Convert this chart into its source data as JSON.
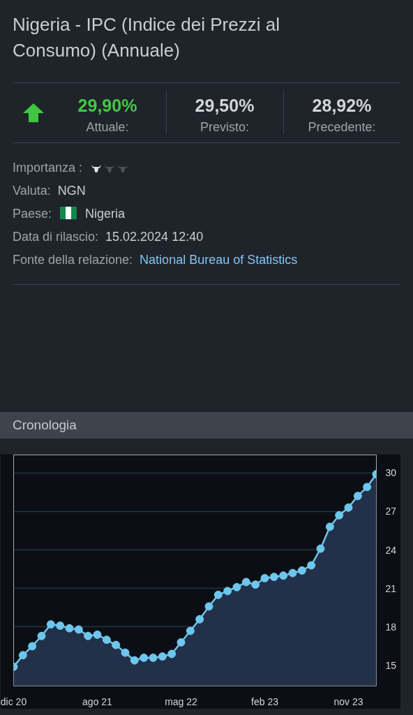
{
  "chart_data": [
    {
      "type": "other",
      "title": "Nigeria - IPC (Indice dei Prezzi al Consumo) (Annuale)",
      "annotations": [
        "29,90%",
        "Attuale:",
        "29,50%",
        "Previsto:",
        "28,92%",
        "Precedente:",
        "Importanza :",
        "Valuta:",
        "NGN",
        "Paese:",
        "Nigeria",
        "Data di rilascio:",
        "15.02.2024 12:40",
        "Fonte della relazione:",
        "National Bureau of Statistics"
      ]
    },
    {
      "type": "area",
      "title": "Cronologia",
      "categories": [
        "dic 20",
        null,
        null,
        null,
        null,
        null,
        null,
        null,
        null,
        "ago 21",
        null,
        null,
        null,
        null,
        null,
        null,
        null,
        null,
        "mag 22",
        null,
        null,
        null,
        null,
        null,
        null,
        null,
        null,
        "feb 23",
        null,
        null,
        null,
        null,
        null,
        null,
        null,
        null,
        "nov 23",
        null,
        null,
        null
      ],
      "series": [
        {
          "color": "#6ec6ec",
          "values": [
            14.9,
            15.8,
            16.5,
            17.3,
            18.2,
            18.1,
            17.9,
            17.8,
            17.3,
            17.4,
            17.0,
            16.6,
            16.0,
            15.4,
            15.6,
            15.6,
            15.7,
            15.9,
            16.8,
            17.7,
            18.6,
            19.6,
            20.5,
            20.8,
            21.1,
            21.5,
            21.3,
            21.8,
            21.9,
            22.0,
            22.2,
            22.4,
            22.8,
            24.1,
            25.8,
            26.7,
            27.3,
            28.2,
            28.9,
            29.9
          ]
        }
      ],
      "ylim": [
        13.4,
        31.4
      ],
      "yticks": [
        15,
        18,
        21,
        24,
        27,
        30
      ],
      "grid": "y",
      "marker": "circle",
      "line_style": "solid"
    }
  ]
}
